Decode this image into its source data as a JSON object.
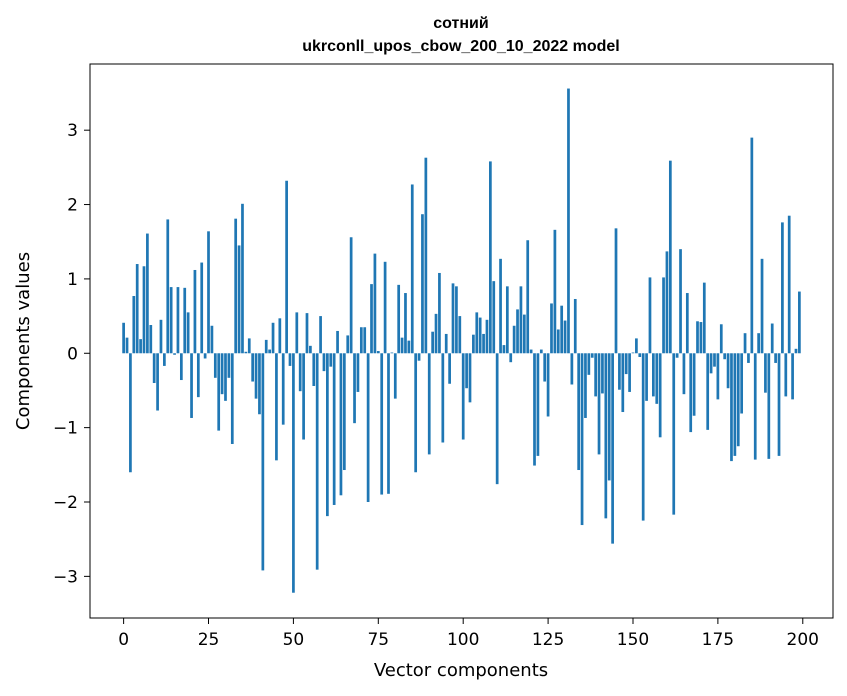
{
  "chart_data": {
    "type": "bar",
    "title_line1": "сотний",
    "title_line2": "ukrconll_upos_cbow_200_10_2022 model",
    "xlabel": "Vector components",
    "ylabel": "Components values",
    "xlim": [
      -9.9,
      208.9
    ],
    "ylim": [
      -3.56,
      3.89
    ],
    "xticks": [
      0,
      25,
      50,
      75,
      100,
      125,
      150,
      175,
      200
    ],
    "xtick_labels": [
      "0",
      "25",
      "50",
      "75",
      "100",
      "125",
      "150",
      "175",
      "200"
    ],
    "yticks": [
      -3,
      -2,
      -1,
      0,
      1,
      2,
      3
    ],
    "ytick_labels": [
      "−3",
      "−2",
      "−1",
      "0",
      "1",
      "2",
      "3"
    ],
    "bar_color": "#1f77b4",
    "grid": false,
    "x": [
      0,
      1,
      2,
      3,
      4,
      5,
      6,
      7,
      8,
      9,
      10,
      11,
      12,
      13,
      14,
      15,
      16,
      17,
      18,
      19,
      20,
      21,
      22,
      23,
      24,
      25,
      26,
      27,
      28,
      29,
      30,
      31,
      32,
      33,
      34,
      35,
      36,
      37,
      38,
      39,
      40,
      41,
      42,
      43,
      44,
      45,
      46,
      47,
      48,
      49,
      50,
      51,
      52,
      53,
      54,
      55,
      56,
      57,
      58,
      59,
      60,
      61,
      62,
      63,
      64,
      65,
      66,
      67,
      68,
      69,
      70,
      71,
      72,
      73,
      74,
      75,
      76,
      77,
      78,
      79,
      80,
      81,
      82,
      83,
      84,
      85,
      86,
      87,
      88,
      89,
      90,
      91,
      92,
      93,
      94,
      95,
      96,
      97,
      98,
      99,
      100,
      101,
      102,
      103,
      104,
      105,
      106,
      107,
      108,
      109,
      110,
      111,
      112,
      113,
      114,
      115,
      116,
      117,
      118,
      119,
      120,
      121,
      122,
      123,
      124,
      125,
      126,
      127,
      128,
      129,
      130,
      131,
      132,
      133,
      134,
      135,
      136,
      137,
      138,
      139,
      140,
      141,
      142,
      143,
      144,
      145,
      146,
      147,
      148,
      149,
      150,
      151,
      152,
      153,
      154,
      155,
      156,
      157,
      158,
      159,
      160,
      161,
      162,
      163,
      164,
      165,
      166,
      167,
      168,
      169,
      170,
      171,
      172,
      173,
      174,
      175,
      176,
      177,
      178,
      179,
      180,
      181,
      182,
      183,
      184,
      185,
      186,
      187,
      188,
      189,
      190,
      191,
      192,
      193,
      194,
      195,
      196,
      197,
      198,
      199
    ],
    "values": [
      0.41,
      0.21,
      -1.6,
      0.77,
      1.2,
      0.19,
      1.17,
      1.61,
      0.38,
      -0.4,
      -0.77,
      0.45,
      -0.17,
      1.8,
      0.89,
      -0.02,
      0.89,
      -0.36,
      0.88,
      0.55,
      -0.87,
      1.12,
      -0.59,
      1.22,
      -0.07,
      1.64,
      0.37,
      -0.33,
      -1.04,
      -0.55,
      -0.64,
      -0.33,
      -1.22,
      1.81,
      1.45,
      2.01,
      0.02,
      0.2,
      -0.38,
      -0.61,
      -0.82,
      -2.92,
      0.18,
      0.05,
      0.41,
      -1.44,
      0.47,
      -0.96,
      2.32,
      -0.17,
      -3.22,
      0.55,
      -0.51,
      -1.16,
      0.54,
      0.1,
      -0.44,
      -2.91,
      0.5,
      -0.24,
      -2.19,
      -0.18,
      -2.04,
      0.3,
      -1.91,
      -1.57,
      0.24,
      1.56,
      -0.94,
      -0.52,
      0.35,
      0.35,
      -2.0,
      0.93,
      1.34,
      0.03,
      -1.9,
      1.23,
      -1.89,
      0.01,
      -0.61,
      0.92,
      0.21,
      0.81,
      0.17,
      2.27,
      -1.6,
      -0.1,
      1.87,
      2.63,
      -1.36,
      0.29,
      0.53,
      1.08,
      -1.2,
      0.26,
      -0.41,
      0.94,
      0.9,
      0.5,
      -1.16,
      -0.47,
      -0.66,
      0.25,
      0.55,
      0.48,
      0.26,
      0.45,
      2.58,
      0.97,
      -1.76,
      1.27,
      0.11,
      0.9,
      -0.12,
      0.37,
      0.59,
      0.9,
      0.52,
      1.52,
      0.05,
      -1.51,
      -1.38,
      0.05,
      -0.38,
      -0.85,
      0.67,
      1.66,
      0.32,
      0.64,
      0.44,
      3.56,
      -0.42,
      0.73,
      -1.57,
      -2.31,
      -0.87,
      -0.29,
      -0.06,
      -0.58,
      -1.36,
      -0.54,
      -2.22,
      -1.71,
      -2.56,
      1.68,
      -0.49,
      -0.79,
      -0.28,
      -0.52,
      0.01,
      0.2,
      -0.05,
      -2.25,
      -0.64,
      1.02,
      -0.58,
      -0.68,
      -1.13,
      1.02,
      1.37,
      2.59,
      -2.17,
      -0.06,
      1.4,
      -0.55,
      0.81,
      -1.06,
      -0.84,
      0.43,
      0.42,
      0.95,
      -1.03,
      -0.27,
      -0.18,
      -0.62,
      0.39,
      -0.08,
      -0.47,
      -1.45,
      -1.38,
      -1.25,
      -0.81,
      0.27,
      -0.13,
      2.9,
      -1.43,
      0.27,
      1.27,
      -0.53,
      -1.42,
      0.4,
      -0.13,
      -1.38,
      1.76,
      -0.58,
      1.85,
      -0.62,
      0.06,
      0.83
    ]
  }
}
